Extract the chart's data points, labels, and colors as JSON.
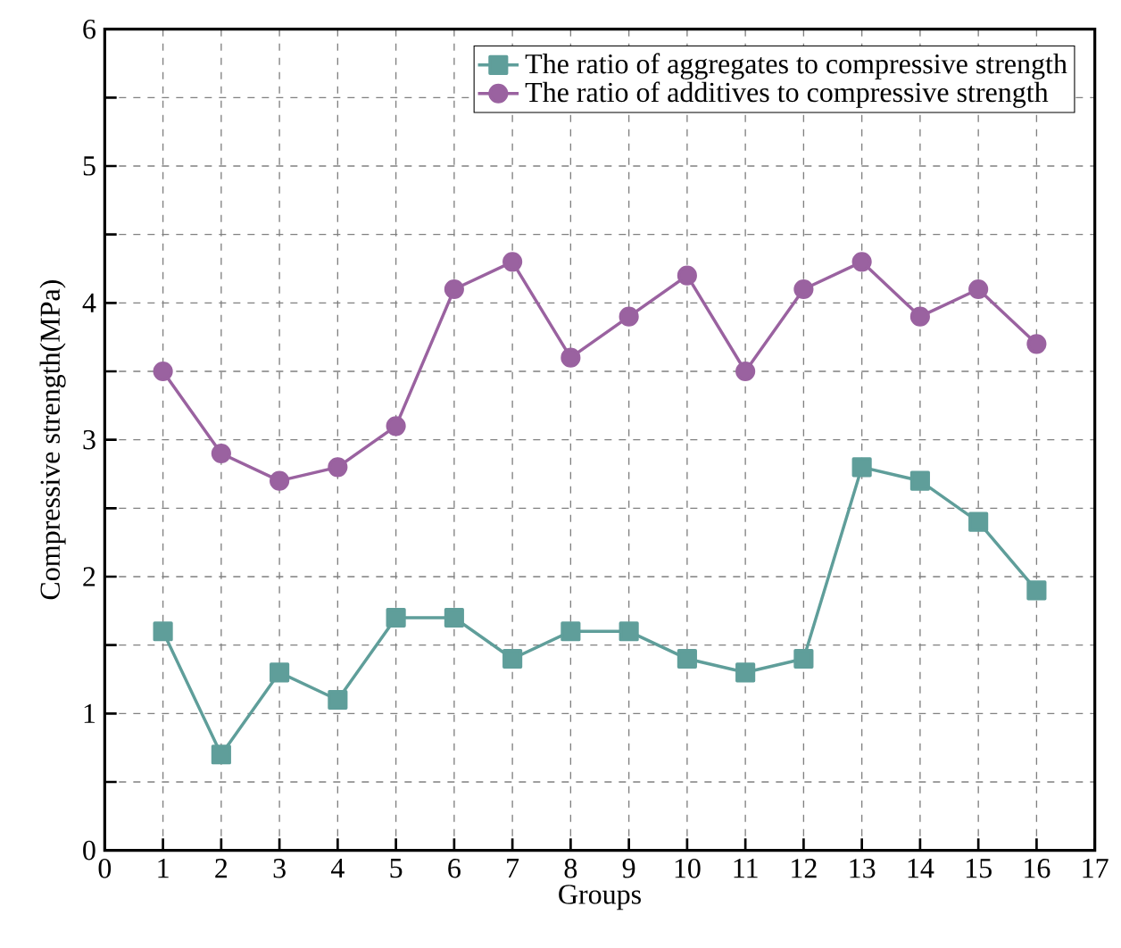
{
  "chart_data": {
    "type": "line",
    "xlabel": "Groups",
    "ylabel": "Compressive strength(MPa)",
    "x": [
      1,
      2,
      3,
      4,
      5,
      6,
      7,
      8,
      9,
      10,
      11,
      12,
      13,
      14,
      15,
      16
    ],
    "series": [
      {
        "name": "The ratio of aggregates to compressive strength",
        "color": "#5f9e9a",
        "marker": "square",
        "values": [
          1.6,
          0.7,
          1.3,
          1.1,
          1.7,
          1.7,
          1.4,
          1.6,
          1.6,
          1.4,
          1.3,
          1.4,
          2.8,
          2.7,
          2.4,
          1.9
        ]
      },
      {
        "name": "The ratio of additives to compressive strength",
        "color": "#9a62a0",
        "marker": "circle",
        "values": [
          3.5,
          2.9,
          2.7,
          2.8,
          3.1,
          4.1,
          4.3,
          3.6,
          3.9,
          4.2,
          3.5,
          4.1,
          4.3,
          3.9,
          4.1,
          3.7
        ]
      }
    ],
    "xlim": [
      0,
      17
    ],
    "xticks": [
      0,
      1,
      2,
      3,
      4,
      5,
      6,
      7,
      8,
      9,
      10,
      11,
      12,
      13,
      14,
      15,
      16,
      17
    ],
    "ylim": [
      0,
      6
    ],
    "yticks": [
      0,
      {
        "value": 0.5,
        "label": null
      },
      1,
      {
        "value": 1.5,
        "label": null
      },
      2,
      {
        "value": 2.5,
        "label": null
      },
      3,
      {
        "value": 3.5,
        "label": null
      },
      4,
      {
        "value": 4.5,
        "label": null
      },
      5,
      {
        "value": 5.5,
        "label": null
      },
      6
    ],
    "grid": true,
    "legend": "top right",
    "line_style": "solid"
  }
}
